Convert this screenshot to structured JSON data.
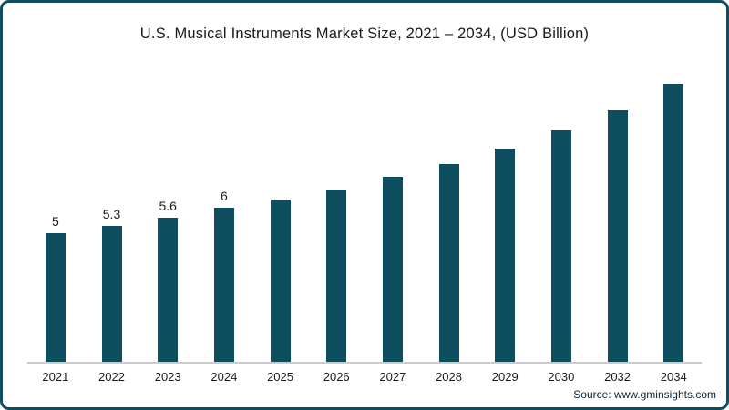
{
  "chart_data": {
    "type": "bar",
    "title": "U.S. Musical Instruments Market Size, 2021 – 2034, (USD Billion)",
    "categories": [
      "2021",
      "2022",
      "2023",
      "2024",
      "2025",
      "2026",
      "2027",
      "2028",
      "2029",
      "2030",
      "2032",
      "2034"
    ],
    "values": [
      5,
      5.3,
      5.6,
      6,
      6.3,
      6.7,
      7.2,
      7.7,
      8.3,
      9.0,
      9.8,
      10.8
    ],
    "data_labels": [
      "5",
      "5.3",
      "5.6",
      "6",
      "",
      "",
      "",
      "",
      "",
      "",
      "",
      ""
    ],
    "xlabel": "",
    "ylabel": "",
    "ylim": [
      0,
      12
    ],
    "grid": false,
    "legend": "none",
    "bar_color": "#0d4d5e"
  },
  "source_text": "Source: www.gminsights.com"
}
